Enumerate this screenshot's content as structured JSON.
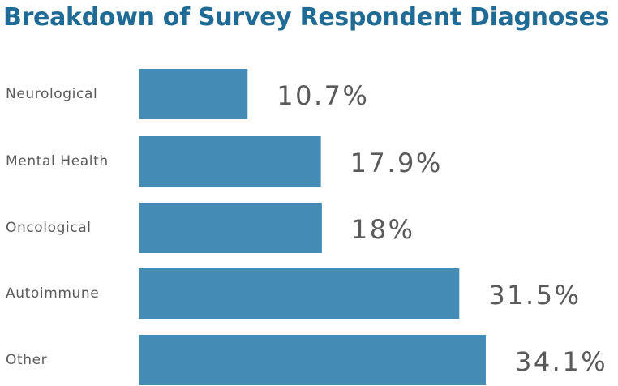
{
  "chart_data": {
    "type": "bar",
    "orientation": "horizontal",
    "title": "Breakdown of Survey Respondent Diagnoses",
    "categories": [
      "Neurological",
      "Mental Health",
      "Oncological",
      "Autoimmune",
      "Other"
    ],
    "values": [
      10.7,
      17.9,
      18,
      31.5,
      34.1
    ],
    "value_labels": [
      "10.7%",
      "17.9%",
      "18%",
      "31.5%",
      "34.1%"
    ],
    "unit": "%",
    "bar_color": "#448bb5",
    "title_color": "#1f6b96",
    "label_color": "#5a5a5a",
    "grid": false,
    "legend": "none"
  }
}
